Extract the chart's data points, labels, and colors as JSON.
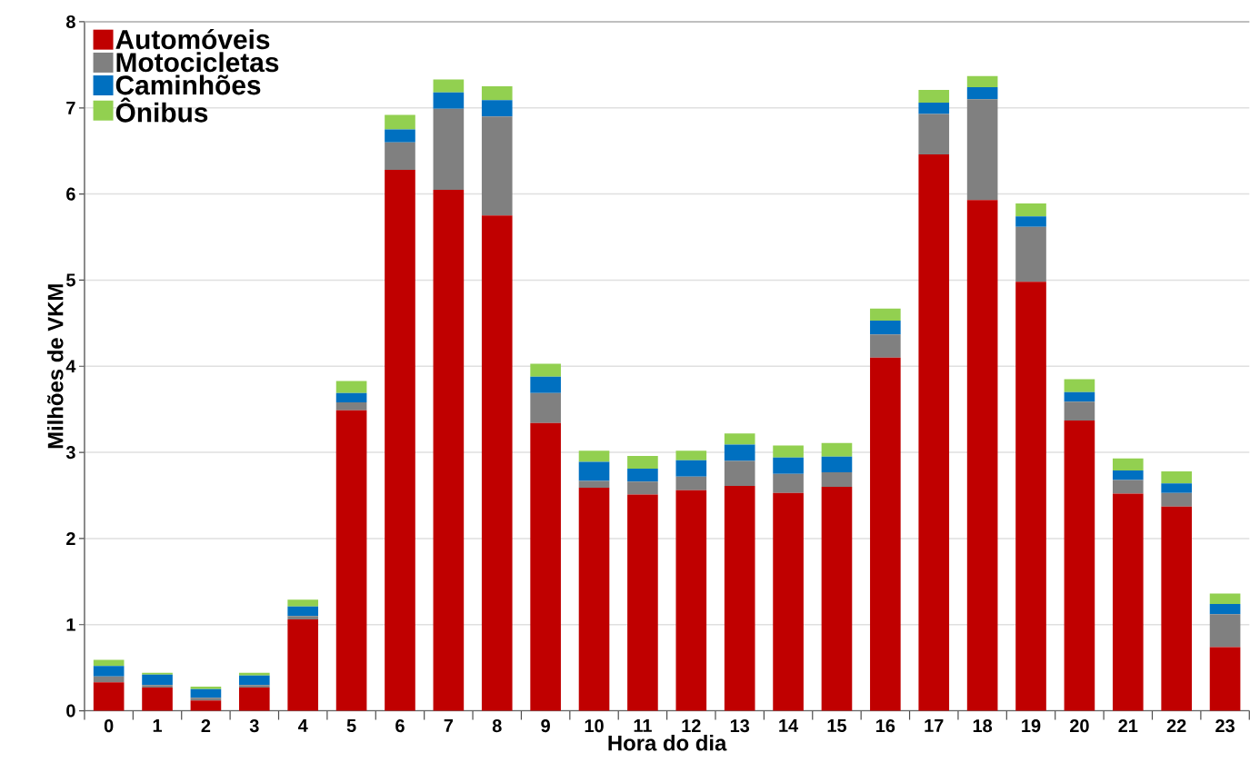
{
  "chart_data": {
    "type": "bar",
    "stacked": true,
    "xlabel": "Hora do dia",
    "ylabel": "Milhões de VKM",
    "categories": [
      "0",
      "1",
      "2",
      "3",
      "4",
      "5",
      "6",
      "7",
      "8",
      "9",
      "10",
      "11",
      "12",
      "13",
      "14",
      "15",
      "16",
      "17",
      "18",
      "19",
      "20",
      "21",
      "22",
      "23"
    ],
    "series": [
      {
        "name": "Automóveis",
        "color": "#c00000",
        "values": [
          0.33,
          0.27,
          0.12,
          0.27,
          1.06,
          3.49,
          6.28,
          6.05,
          5.75,
          3.34,
          2.59,
          2.51,
          2.56,
          2.61,
          2.53,
          2.6,
          4.1,
          6.46,
          5.93,
          4.98,
          3.37,
          2.52,
          2.37,
          0.74
        ]
      },
      {
        "name": "Motocicletas",
        "color": "#808080",
        "values": [
          0.07,
          0.03,
          0.03,
          0.03,
          0.04,
          0.09,
          0.32,
          0.94,
          1.15,
          0.35,
          0.08,
          0.15,
          0.16,
          0.29,
          0.22,
          0.17,
          0.27,
          0.47,
          1.17,
          0.64,
          0.22,
          0.16,
          0.16,
          0.38
        ]
      },
      {
        "name": "Caminhões",
        "color": "#0070c0",
        "values": [
          0.12,
          0.12,
          0.1,
          0.11,
          0.11,
          0.11,
          0.15,
          0.19,
          0.19,
          0.19,
          0.22,
          0.15,
          0.19,
          0.19,
          0.19,
          0.18,
          0.16,
          0.13,
          0.14,
          0.12,
          0.11,
          0.11,
          0.11,
          0.12
        ]
      },
      {
        "name": "Ônibus",
        "color": "#92d050",
        "values": [
          0.07,
          0.02,
          0.03,
          0.03,
          0.08,
          0.14,
          0.17,
          0.15,
          0.16,
          0.15,
          0.13,
          0.15,
          0.11,
          0.13,
          0.14,
          0.16,
          0.14,
          0.15,
          0.13,
          0.15,
          0.15,
          0.14,
          0.14,
          0.12
        ]
      }
    ],
    "ylim": [
      0,
      8
    ],
    "yticks": [
      0,
      1,
      2,
      3,
      4,
      5,
      6,
      7,
      8
    ],
    "grid": "y",
    "legend": "top left"
  }
}
